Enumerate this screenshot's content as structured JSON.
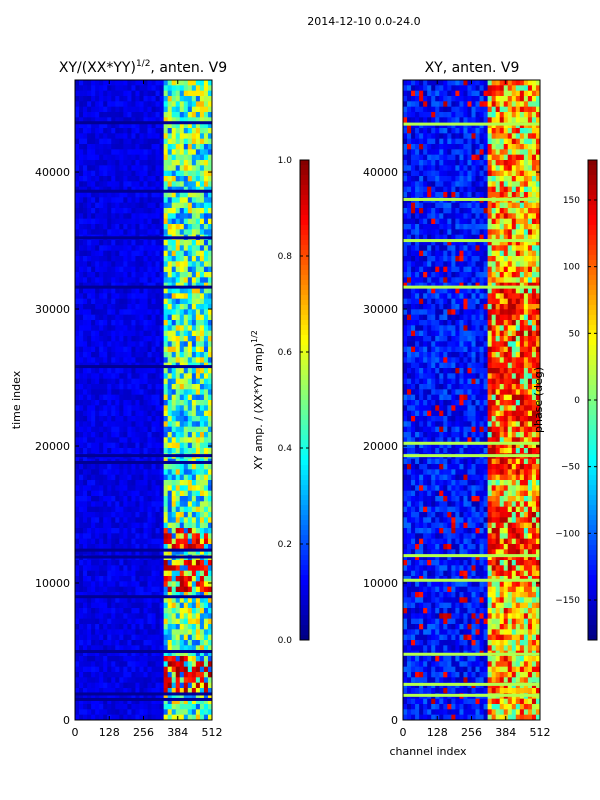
{
  "figure": {
    "suptitle": "2014-12-10 0.0-24.0"
  },
  "chart_data": [
    {
      "type": "heatmap",
      "title_main": "XY/(XX*YY)",
      "title_sup": "1/2",
      "title_tail": ", anten. V9",
      "xlabel": "",
      "ylabel": "time index",
      "xlim": [
        0,
        512
      ],
      "ylim": [
        0,
        46720
      ],
      "xticks": [
        0,
        128,
        256,
        384,
        512
      ],
      "yticks": [
        0,
        10000,
        20000,
        30000,
        40000
      ],
      "colorbar": {
        "label_main": "XY amp. / (XX*YY amp)",
        "label_sup": "1/2",
        "range": [
          0.0,
          1.0
        ],
        "ticks": [
          0.0,
          0.2,
          0.4,
          0.6,
          0.8,
          1.0
        ],
        "tick_labels": [
          "0.0",
          "0.2",
          "0.4",
          "0.6",
          "0.8",
          "1.0"
        ],
        "colormap": "jet"
      },
      "features": {
        "background_value": 0.1,
        "active_channel_range": [
          330,
          512
        ],
        "active_value": 0.45,
        "hot_time_ranges": [
          [
            9500,
            11500
          ],
          [
            12500,
            14200
          ],
          [
            2000,
            4500
          ]
        ],
        "hot_value": 0.9,
        "empty_rows": [
          1500,
          1900,
          5000,
          9000,
          11900,
          12400,
          18800,
          19300,
          25800,
          31600,
          35200,
          38600,
          43600
        ]
      }
    },
    {
      "type": "heatmap",
      "title": "XY, anten. V9",
      "xlabel": "channel index",
      "ylabel": "",
      "xlim": [
        0,
        512
      ],
      "ylim": [
        0,
        46720
      ],
      "xticks": [
        0,
        128,
        256,
        384,
        512
      ],
      "yticks": [
        0,
        10000,
        20000,
        30000,
        40000
      ],
      "colorbar": {
        "label": "phase (deg)",
        "range": [
          -180,
          180
        ],
        "ticks": [
          -150,
          -100,
          -50,
          0,
          50,
          100,
          150
        ],
        "tick_labels": [
          "−150",
          "−100",
          "−50",
          "0",
          "50",
          "100",
          "150"
        ],
        "colormap": "jet"
      },
      "features": {
        "background_value": -130,
        "active_channel_range": [
          320,
          512
        ],
        "active_value": 60,
        "hot_time_ranges": [
          [
            11000,
            16000
          ],
          [
            18000,
            32000
          ]
        ],
        "hot_value": 140,
        "flat_rows": [
          1800,
          2600,
          4800,
          10200,
          12000,
          19300,
          20200,
          31600,
          35000,
          38000,
          43500
        ]
      }
    }
  ],
  "colors": {
    "frame": "#000000",
    "jet_low": "#00008f",
    "jet_mid": "#80ff80",
    "jet_high": "#800000"
  }
}
